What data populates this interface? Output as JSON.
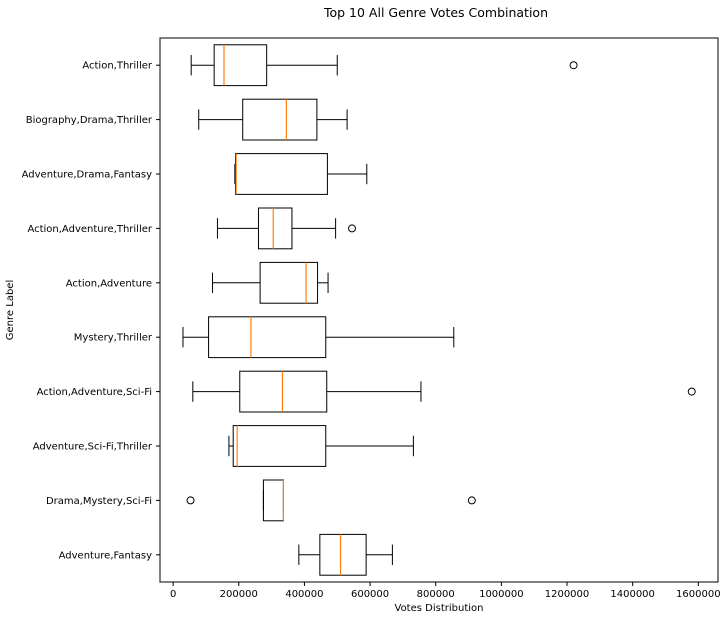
{
  "chart_data": {
    "type": "boxplot",
    "orientation": "horizontal",
    "title": "Top 10 All Genre Votes Combination",
    "xlabel": "Votes Distribution",
    "ylabel": "Genre Label",
    "xlim": [
      -40000,
      1660000
    ],
    "xticks": [
      0,
      200000,
      400000,
      600000,
      800000,
      1000000,
      1200000,
      1400000,
      1600000
    ],
    "grid": false,
    "colors": {
      "box": "#000000",
      "median": "#ff7f0e",
      "whisker": "#000000",
      "outlier": "#000000"
    },
    "categories": [
      "Action,Thriller",
      "Biography,Drama,Thriller",
      "Adventure,Drama,Fantasy",
      "Action,Adventure,Thriller",
      "Action,Adventure",
      "Mystery,Thriller",
      "Action,Adventure,Sci-Fi",
      "Adventure,Sci-Fi,Thriller",
      "Drama,Mystery,Sci-Fi",
      "Adventure,Fantasy"
    ],
    "boxes": [
      {
        "label": "Action,Thriller",
        "whislo": 55000,
        "q1": 125000,
        "med": 155000,
        "q3": 285000,
        "whishi": 500000,
        "fliers": [
          1220000
        ]
      },
      {
        "label": "Biography,Drama,Thriller",
        "whislo": 78000,
        "q1": 212000,
        "med": 345000,
        "q3": 438000,
        "whishi": 530000,
        "fliers": []
      },
      {
        "label": "Adventure,Drama,Fantasy",
        "whislo": 188000,
        "q1": 190000,
        "med": 192000,
        "q3": 470000,
        "whishi": 590000,
        "fliers": []
      },
      {
        "label": "Action,Adventure,Thriller",
        "whislo": 135000,
        "q1": 260000,
        "med": 305000,
        "q3": 362000,
        "whishi": 495000,
        "fliers": [
          545000
        ]
      },
      {
        "label": "Action,Adventure",
        "whislo": 120000,
        "q1": 265000,
        "med": 405000,
        "q3": 440000,
        "whishi": 472000,
        "fliers": []
      },
      {
        "label": "Mystery,Thriller",
        "whislo": 30000,
        "q1": 108000,
        "med": 237000,
        "q3": 465000,
        "whishi": 855000,
        "fliers": []
      },
      {
        "label": "Action,Adventure,Sci-Fi",
        "whislo": 60000,
        "q1": 203000,
        "med": 333000,
        "q3": 468000,
        "whishi": 755000,
        "fliers": [
          1580000
        ]
      },
      {
        "label": "Adventure,Sci-Fi,Thriller",
        "whislo": 170000,
        "q1": 183000,
        "med": 195000,
        "q3": 465000,
        "whishi": 732000,
        "fliers": []
      },
      {
        "label": "Drama,Mystery,Sci-Fi",
        "whislo": 275000,
        "q1": 275000,
        "med": 336000,
        "q3": 336000,
        "whishi": 336000,
        "fliers": [
          53000,
          910000
        ]
      },
      {
        "label": "Adventure,Fantasy",
        "whislo": 383000,
        "q1": 447000,
        "med": 510000,
        "q3": 588000,
        "whishi": 668000,
        "fliers": []
      }
    ]
  }
}
